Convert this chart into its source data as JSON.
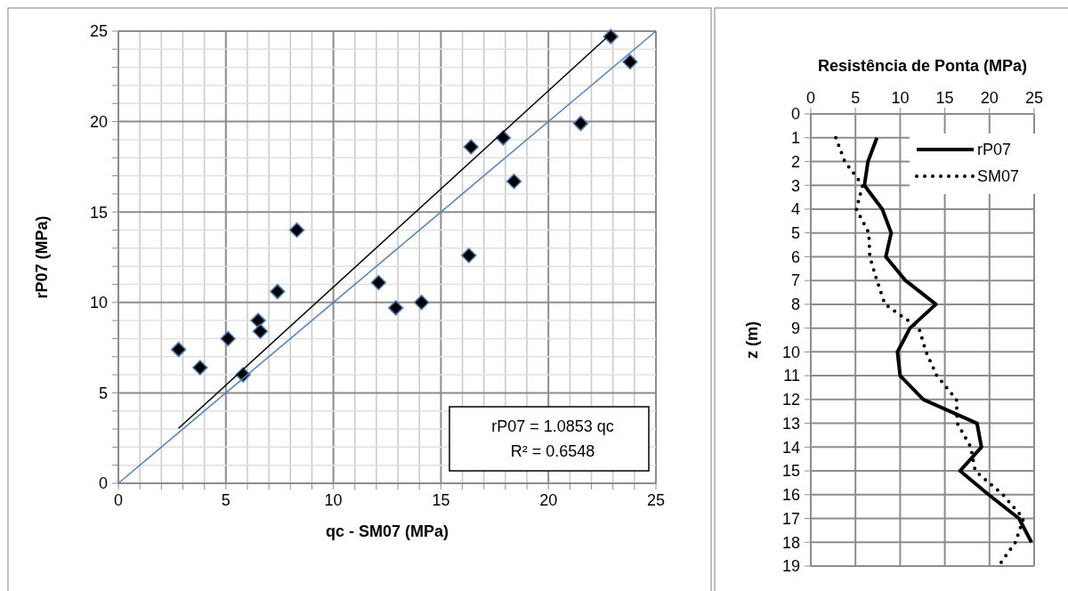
{
  "chart_data": [
    {
      "type": "scatter",
      "xlabel": "qc - SM07 (MPa)",
      "ylabel": "rP07 (MPa)",
      "xlim": [
        0,
        25
      ],
      "ylim": [
        0,
        25
      ],
      "xticks": [
        0,
        {
          "value": 1,
          "label": null
        },
        {
          "value": 2,
          "label": null
        },
        {
          "value": 3,
          "label": null
        },
        {
          "value": 4,
          "label": null
        },
        5,
        {
          "value": 6,
          "label": null
        },
        {
          "value": 7,
          "label": null
        },
        {
          "value": 8,
          "label": null
        },
        {
          "value": 9,
          "label": null
        },
        10,
        {
          "value": 11,
          "label": null
        },
        {
          "value": 12,
          "label": null
        },
        {
          "value": 13,
          "label": null
        },
        {
          "value": 14,
          "label": null
        },
        15,
        {
          "value": 16,
          "label": null
        },
        {
          "value": 17,
          "label": null
        },
        {
          "value": 18,
          "label": null
        },
        {
          "value": 19,
          "label": null
        },
        20,
        {
          "value": 21,
          "label": null
        },
        {
          "value": 22,
          "label": null
        },
        {
          "value": 23,
          "label": null
        },
        {
          "value": 24,
          "label": null
        },
        25
      ],
      "yticks": [
        0,
        {
          "value": 1,
          "label": null
        },
        {
          "value": 2,
          "label": null
        },
        {
          "value": 3,
          "label": null
        },
        {
          "value": 4,
          "label": null
        },
        5,
        {
          "value": 6,
          "label": null
        },
        {
          "value": 7,
          "label": null
        },
        {
          "value": 8,
          "label": null
        },
        {
          "value": 9,
          "label": null
        },
        10,
        {
          "value": 11,
          "label": null
        },
        {
          "value": 12,
          "label": null
        },
        {
          "value": 13,
          "label": null
        },
        {
          "value": 14,
          "label": null
        },
        15,
        {
          "value": 16,
          "label": null
        },
        {
          "value": 17,
          "label": null
        },
        {
          "value": 18,
          "label": null
        },
        {
          "value": 19,
          "label": null
        },
        20,
        {
          "value": 21,
          "label": null
        },
        {
          "value": 22,
          "label": null
        },
        {
          "value": 23,
          "label": null
        },
        {
          "value": 24,
          "label": null
        },
        25
      ],
      "grid": true,
      "legend": false,
      "series": [
        {
          "color": "#000000",
          "marker": "diamond",
          "x": [
            2.8,
            3.8,
            5.8,
            5.1,
            6.5,
            6.6,
            7.4,
            8.3,
            12.1,
            12.9,
            14.1,
            16.3,
            16.4,
            17.9,
            18.4,
            21.5,
            23.8,
            22.9
          ],
          "values": [
            7.4,
            6.4,
            6.0,
            8.0,
            9.0,
            8.4,
            10.6,
            14.0,
            11.1,
            9.7,
            10.0,
            12.6,
            18.6,
            19.1,
            16.7,
            19.9,
            23.3,
            24.7
          ]
        },
        {
          "type": "line",
          "color": "#000000",
          "marker": "none",
          "x": [
            2.8,
            22.9
          ],
          "values": [
            3.04,
            24.85
          ]
        },
        {
          "type": "line",
          "color": "#4f81bd",
          "marker": "none",
          "x": [
            0,
            25
          ],
          "values": [
            0,
            25
          ]
        }
      ],
      "annotations": [
        "rP07 = 1.0853 qc",
        "R² = 0.6548"
      ]
    },
    {
      "type": "line",
      "xlabel": "Resistência de Ponta (MPa)",
      "ylabel": "z (m)",
      "xlim": [
        0,
        25
      ],
      "ylim": [
        19,
        0
      ],
      "xticks": [
        0,
        5,
        10,
        15,
        20,
        25
      ],
      "yticks": [
        0,
        1,
        2,
        3,
        4,
        5,
        6,
        7,
        8,
        9,
        10,
        11,
        12,
        13,
        14,
        15,
        16,
        17,
        18,
        19
      ],
      "grid": true,
      "legend": "top right",
      "marker": "none",
      "series": [
        {
          "name": "rP07",
          "color": "#000000",
          "line_style": "solid",
          "x": [
            7.4,
            6.4,
            6.0,
            8.0,
            9.0,
            8.4,
            10.6,
            14.0,
            11.1,
            9.7,
            10.0,
            12.6,
            18.6,
            19.1,
            16.7,
            19.9,
            23.3,
            24.7
          ],
          "values": [
            1,
            2,
            3,
            4,
            5,
            6,
            7,
            8,
            9,
            10,
            11,
            12,
            13,
            14,
            15,
            16,
            17,
            18
          ]
        },
        {
          "name": "SM07",
          "color": "#000000",
          "line_style": "dotted",
          "x": [
            2.8,
            3.8,
            5.8,
            5.1,
            6.5,
            6.6,
            7.4,
            8.3,
            12.1,
            12.9,
            14.1,
            16.3,
            16.4,
            17.9,
            18.4,
            21.5,
            23.8,
            22.9,
            21.0
          ],
          "values": [
            1,
            2,
            3,
            4,
            5,
            6,
            7,
            8,
            9,
            10,
            11,
            12,
            13,
            14,
            15,
            16,
            17,
            18,
            19
          ]
        }
      ]
    }
  ]
}
